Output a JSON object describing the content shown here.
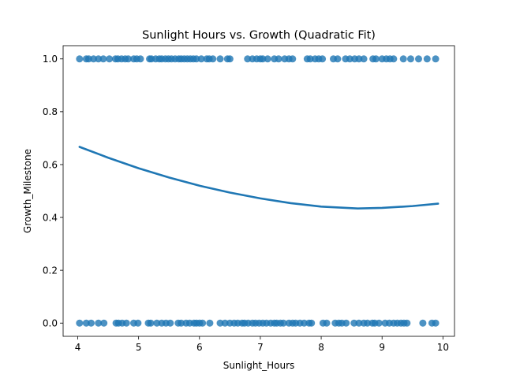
{
  "chart_data": {
    "type": "scatter",
    "title": "Sunlight Hours vs. Growth (Quadratic Fit)",
    "xlabel": "Sunlight_Hours",
    "ylabel": "Growth_Milestone",
    "xlim": [
      3.76,
      10.19
    ],
    "ylim": [
      -0.05,
      1.05
    ],
    "xticks": [
      4,
      5,
      6,
      7,
      8,
      9,
      10
    ],
    "xtick_labels": [
      "4",
      "5",
      "6",
      "7",
      "8",
      "9",
      "10"
    ],
    "yticks": [
      0.0,
      0.2,
      0.4,
      0.6,
      0.8,
      1.0
    ],
    "ytick_labels": [
      "0.0",
      "0.2",
      "0.4",
      "0.6",
      "0.8",
      "1.0"
    ],
    "grid": false,
    "legend": "none",
    "colors": {
      "points": "#1f77b4",
      "fit_line": "#1f77b4"
    },
    "points_y1_x": [
      4.03,
      4.14,
      4.18,
      4.26,
      4.34,
      4.42,
      4.52,
      4.62,
      4.66,
      4.72,
      4.78,
      4.83,
      4.92,
      4.97,
      5.03,
      5.18,
      5.21,
      5.28,
      5.34,
      5.38,
      5.44,
      5.49,
      5.54,
      5.6,
      5.66,
      5.7,
      5.75,
      5.8,
      5.85,
      5.9,
      5.95,
      6.03,
      6.12,
      6.16,
      6.22,
      6.34,
      6.46,
      6.5,
      6.79,
      6.87,
      6.94,
      7.0,
      7.04,
      7.12,
      7.23,
      7.3,
      7.4,
      7.47,
      7.53,
      7.77,
      7.82,
      7.9,
      7.96,
      8.02,
      8.2,
      8.27,
      8.4,
      8.47,
      8.55,
      8.62,
      8.7,
      8.85,
      8.9,
      9.0,
      9.07,
      9.13,
      9.19,
      9.35,
      9.47,
      9.6,
      9.74,
      9.88
    ],
    "points_y0_x": [
      4.03,
      4.14,
      4.22,
      4.34,
      4.43,
      4.63,
      4.67,
      4.73,
      4.8,
      4.92,
      4.99,
      5.16,
      5.2,
      5.3,
      5.38,
      5.45,
      5.52,
      5.65,
      5.7,
      5.78,
      5.84,
      5.91,
      5.95,
      6.0,
      6.05,
      6.17,
      6.34,
      6.42,
      6.5,
      6.57,
      6.63,
      6.7,
      6.74,
      6.8,
      6.87,
      6.92,
      6.98,
      7.04,
      7.1,
      7.17,
      7.23,
      7.27,
      7.33,
      7.38,
      7.47,
      7.53,
      7.58,
      7.65,
      7.72,
      7.8,
      7.84,
      8.03,
      8.09,
      8.23,
      8.29,
      8.34,
      8.41,
      8.54,
      8.62,
      8.7,
      8.76,
      8.84,
      8.88,
      8.95,
      9.05,
      9.12,
      9.19,
      9.25,
      9.31,
      9.36,
      9.41,
      9.67,
      9.82,
      9.88
    ],
    "fit_curve": {
      "x": [
        4.03,
        4.5,
        5.0,
        5.5,
        6.0,
        6.5,
        7.0,
        7.5,
        8.0,
        8.6,
        9.0,
        9.5,
        9.92
      ],
      "y": [
        0.667,
        0.626,
        0.586,
        0.551,
        0.52,
        0.494,
        0.472,
        0.454,
        0.441,
        0.434,
        0.436,
        0.443,
        0.452
      ]
    }
  }
}
